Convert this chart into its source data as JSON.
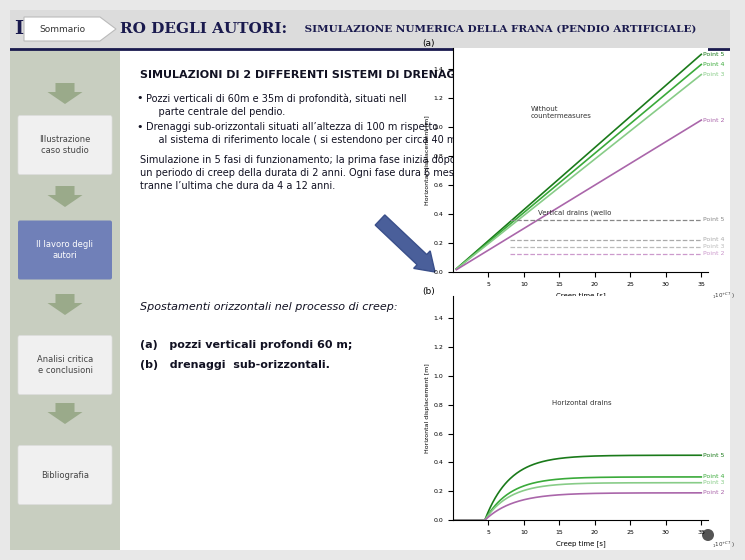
{
  "bg_left_color": "#c8cec0",
  "bg_right_color": "#e8e8e8",
  "slide_white_bg": "#ffffff",
  "header_bg": "#dcdcdc",
  "title_bold": "RO DEGLI AUTORI:",
  "title_sub": " SIMULAZIONE NUMERICA DELLA FRANA (PENDIO ARTIFICIALE)",
  "title_color": "#1a1a4e",
  "nav_items": [
    "Sommario",
    "Illustrazione\ncaso studio",
    "Il lavoro degli\nautori",
    "Analisi critica\ne conclusioni",
    "Bibliografia"
  ],
  "nav_active_idx": 2,
  "nav_active_color": "#7080b8",
  "nav_inactive_color": "#c8d0b8",
  "nav_white_box_color": "#f0f0f0",
  "heading": "SIMULAZIONI DI 2 DIFFERENTI SISTEMI DI DRENAGGIO:",
  "bullet1_line1": "Pozzi verticali di 60m e 35m di profondità, situati nell",
  "bullet1_line2": "    parte centrale del pendio.",
  "bullet2_line1": "Drenaggi sub-orizzontali situati all’altezza di 100 m rispetto",
  "bullet2_line2": "    al sistema di riferimento locale ( si estendono per circa 40 m)",
  "sim_text": "Simulazione in 5 fasi di funzionamento; la prima fase inizia dopo\nun periodo di creep della durata di 2 anni. Ogni fase dura 6 mesi,\ntranne l’ultima che dura da 4 a 12 anni.",
  "spost_text": "Spostamenti orizzontali nel processo di creep:",
  "label_a_bold": "(a)   pozzi verticali profondi 60 m;",
  "label_b_bold": "(b)   drenaggi  sub-orizzontali.",
  "arrow_color": "#4a6090",
  "chart_a_title": "(a)",
  "chart_b_title": "(b)",
  "chart_xlabel": "Creep time [s]",
  "chart_ylabel": "Horizontal displacement [m]",
  "chart_a_annotation1": "Without\ncountermeasures",
  "chart_a_annotation2": "Vertical drains (wello",
  "chart_b_annotation": "Horizontal drains",
  "line_dark_green": "#1a7a1a",
  "line_mid_green": "#3aaa3a",
  "line_light_green": "#88cc88",
  "line_purple": "#aa66aa",
  "line_dashed_dark": "#888888",
  "line_dashed_mid": "#aaaaaa",
  "line_dashed_light": "#bbbbbb",
  "line_dashed_purple": "#cc99cc",
  "dot_color": "#555555",
  "xticks": [
    5,
    10,
    15,
    20,
    25,
    30,
    35
  ],
  "yticks_a": [
    0.0,
    0.2,
    0.4,
    0.6,
    0.8,
    1.0,
    1.2,
    1.4
  ],
  "yticks_b": [
    0.0,
    0.2,
    0.4,
    0.6,
    0.8,
    1.0,
    1.2,
    1.4
  ],
  "xlim": [
    0,
    37
  ],
  "ylim_a": [
    0,
    1.55
  ],
  "ylim_b": [
    0,
    1.55
  ]
}
